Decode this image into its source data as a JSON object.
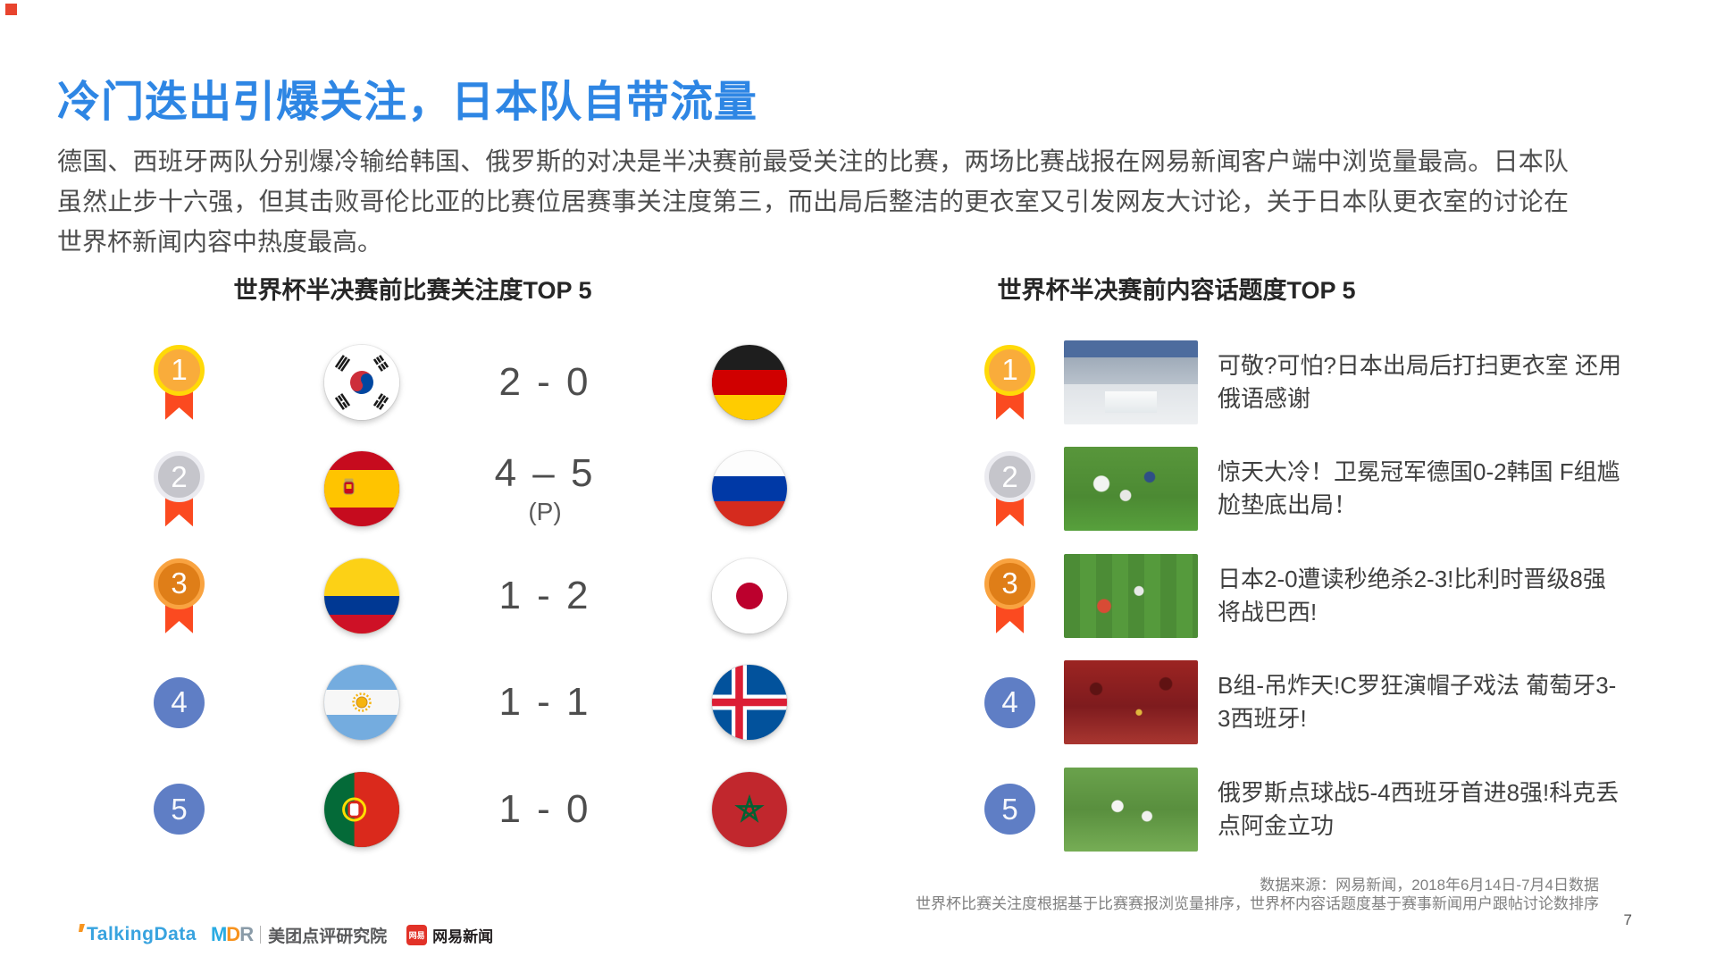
{
  "title": "冷门迭出引爆关注，日本队自带流量",
  "paragraph": "德国、西班牙两队分别爆冷输给韩国、俄罗斯的对决是半决赛前最受关注的比赛，两场比赛战报在网易新闻客户端中浏览量最高。日本队虽然止步十六强，但其击败哥伦比亚的比赛位居赛事关注度第三，而出局后整洁的更衣室又引发网友大讨论，关于日本队更衣室的讨论在世界杯新闻内容中热度最高。",
  "left_section": {
    "header": "世界杯半决赛前比赛关注度TOP 5",
    "matches": [
      {
        "rank": "1",
        "medal": "gold",
        "home": {
          "flag": "south-korea"
        },
        "score": "2 - 0",
        "score_note": "",
        "away": {
          "flag": "germany"
        }
      },
      {
        "rank": "2",
        "medal": "silver",
        "home": {
          "flag": "spain"
        },
        "score": "4 – 5",
        "score_note": "(P)",
        "away": {
          "flag": "russia"
        }
      },
      {
        "rank": "3",
        "medal": "bronze",
        "home": {
          "flag": "colombia"
        },
        "score": "1 - 2",
        "score_note": "",
        "away": {
          "flag": "japan"
        }
      },
      {
        "rank": "4",
        "medal": "plain",
        "home": {
          "flag": "argentina"
        },
        "score": "1 - 1",
        "score_note": "",
        "away": {
          "flag": "iceland"
        }
      },
      {
        "rank": "5",
        "medal": "plain",
        "home": {
          "flag": "portugal"
        },
        "score": "1 - 0",
        "score_note": "",
        "away": {
          "flag": "morocco"
        }
      }
    ]
  },
  "right_section": {
    "header": "世界杯半决赛前内容话题度TOP 5",
    "topics": [
      {
        "rank": "1",
        "medal": "gold",
        "thumbnail": "japan-locker-room",
        "title": "可敬?可怕?日本出局后打扫更衣室 还用俄语感谢"
      },
      {
        "rank": "2",
        "medal": "silver",
        "thumbnail": "germany-korea-match",
        "title": "惊天大冷！卫冕冠军德国0-2韩国 F组尴尬垫底出局！"
      },
      {
        "rank": "3",
        "medal": "bronze",
        "thumbnail": "japan-belgium-match",
        "title": "日本2-0遭读秒绝杀2-3!比利时晋级8强将战巴西!"
      },
      {
        "rank": "4",
        "medal": "plain",
        "thumbnail": "portugal-fans",
        "title": "B组-吊炸天!C罗狂演帽子戏法 葡萄牙3-3西班牙!"
      },
      {
        "rank": "5",
        "medal": "plain",
        "thumbnail": "russia-spain-match",
        "title": "俄罗斯点球战5-4西班牙首进8强!科克丢点阿金立功"
      }
    ]
  },
  "footer": {
    "source_line1": "数据来源：网易新闻，2018年6月14日-7月4日数据",
    "source_line2": "世界杯比赛关注度根据基于比赛赛报浏览量排序，世界杯内容话题度基于赛事新闻用户跟帖讨论数排序",
    "page_number": "7",
    "logos": {
      "talkingdata": "TalkingData",
      "mdr": "MDR",
      "meituan": "美团点评研究院",
      "netease_badge": "网易",
      "netease": "网易新闻"
    }
  },
  "colors": {
    "title_blue": "#2e86e4",
    "body_text": "#4e4e4e",
    "medal_gold_ring": "#ffd908",
    "medal_gold_fill": "#f9ac3b",
    "medal_silver_ring": "#ebebf0",
    "medal_silver_fill": "#c5c5cb",
    "medal_bronze_ring": "#f9a340",
    "medal_bronze_fill": "#df7e18",
    "ribbon_red": "#fb4a20",
    "rank_circle_blue": "#5f7ec5"
  }
}
